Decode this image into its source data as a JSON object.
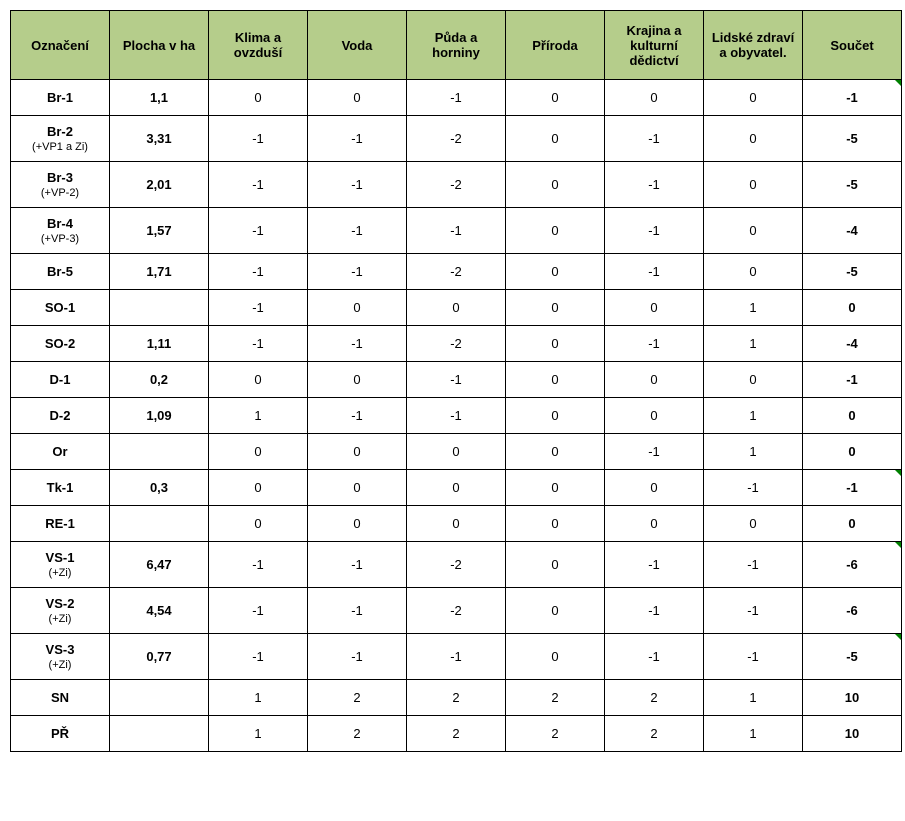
{
  "table": {
    "header_bg": "#b5cd8b",
    "border_color": "#000000",
    "columns": [
      "Označení",
      "Plocha v ha",
      "Klima a ovzduší",
      "Voda",
      "Půda a horniny",
      "Příroda",
      "Krajina a kulturní dědictví",
      "Lidské zdraví a obyvatel.",
      "Součet"
    ],
    "rows": [
      {
        "label": "Br-1",
        "sub": "",
        "plocha": "1,1",
        "vals": [
          "0",
          "0",
          "-1",
          "0",
          "0",
          "0"
        ],
        "sum": "-1",
        "flag": true,
        "tall": false
      },
      {
        "label": "Br-2",
        "sub": "(+VP1 a Zi)",
        "plocha": "3,31",
        "vals": [
          "-1",
          "-1",
          "-2",
          "0",
          "-1",
          "0"
        ],
        "sum": "-5",
        "flag": false,
        "tall": true
      },
      {
        "label": "Br-3",
        "sub": "(+VP-2)",
        "plocha": "2,01",
        "vals": [
          "-1",
          "-1",
          "-2",
          "0",
          "-1",
          "0"
        ],
        "sum": "-5",
        "flag": false,
        "tall": true
      },
      {
        "label": "Br-4",
        "sub": "(+VP-3)",
        "plocha": "1,57",
        "vals": [
          "-1",
          "-1",
          "-1",
          "0",
          "-1",
          "0"
        ],
        "sum": "-4",
        "flag": false,
        "tall": true
      },
      {
        "label": "Br-5",
        "sub": "",
        "plocha": "1,71",
        "vals": [
          "-1",
          "-1",
          "-2",
          "0",
          "-1",
          "0"
        ],
        "sum": "-5",
        "flag": false,
        "tall": false
      },
      {
        "label": "SO-1",
        "sub": "",
        "plocha": "",
        "vals": [
          "-1",
          "0",
          "0",
          "0",
          "0",
          "1"
        ],
        "sum": "0",
        "flag": false,
        "tall": false
      },
      {
        "label": "SO-2",
        "sub": "",
        "plocha": "1,11",
        "vals": [
          "-1",
          "-1",
          "-2",
          "0",
          "-1",
          "1"
        ],
        "sum": "-4",
        "flag": false,
        "tall": false
      },
      {
        "label": "D-1",
        "sub": "",
        "plocha": "0,2",
        "vals": [
          "0",
          "0",
          "-1",
          "0",
          "0",
          "0"
        ],
        "sum": "-1",
        "flag": false,
        "tall": false
      },
      {
        "label": "D-2",
        "sub": "",
        "plocha": "1,09",
        "vals": [
          "1",
          "-1",
          "-1",
          "0",
          "0",
          "1"
        ],
        "sum": "0",
        "flag": false,
        "tall": false
      },
      {
        "label": "Or",
        "sub": "",
        "plocha": "",
        "vals": [
          "0",
          "0",
          "0",
          "0",
          "-1",
          "1"
        ],
        "sum": "0",
        "flag": false,
        "tall": false
      },
      {
        "label": "Tk-1",
        "sub": "",
        "plocha": "0,3",
        "vals": [
          "0",
          "0",
          "0",
          "0",
          "0",
          "-1"
        ],
        "sum": "-1",
        "flag": true,
        "tall": false
      },
      {
        "label": "RE-1",
        "sub": "",
        "plocha": "",
        "vals": [
          "0",
          "0",
          "0",
          "0",
          "0",
          "0"
        ],
        "sum": "0",
        "flag": false,
        "tall": false
      },
      {
        "label": "VS-1",
        "sub": "(+Zi)",
        "plocha": "6,47",
        "vals": [
          "-1",
          "-1",
          "-2",
          "0",
          "-1",
          "-1"
        ],
        "sum": "-6",
        "flag": true,
        "tall": true
      },
      {
        "label": "VS-2",
        "sub": "(+Zi)",
        "plocha": "4,54",
        "vals": [
          "-1",
          "-1",
          "-2",
          "0",
          "-1",
          "-1"
        ],
        "sum": "-6",
        "flag": false,
        "tall": true
      },
      {
        "label": "VS-3",
        "sub": "(+Zi)",
        "plocha": "0,77",
        "vals": [
          "-1",
          "-1",
          "-1",
          "0",
          "-1",
          "-1"
        ],
        "sum": "-5",
        "flag": true,
        "tall": true
      },
      {
        "label": "SN",
        "sub": "",
        "plocha": "",
        "vals": [
          "1",
          "2",
          "2",
          "2",
          "2",
          "1"
        ],
        "sum": "10",
        "flag": false,
        "tall": false
      },
      {
        "label": "PŘ",
        "sub": "",
        "plocha": "",
        "vals": [
          "1",
          "2",
          "2",
          "2",
          "2",
          "1"
        ],
        "sum": "10",
        "flag": false,
        "tall": false
      }
    ]
  }
}
